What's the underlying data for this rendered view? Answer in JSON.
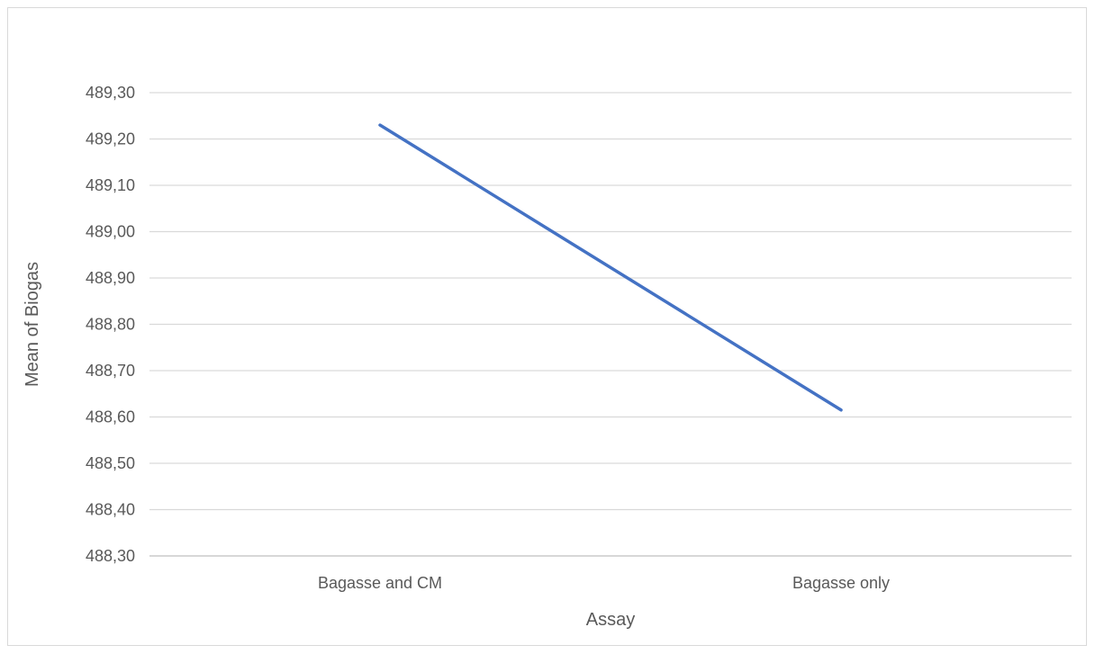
{
  "chart_data": {
    "type": "line",
    "title": "",
    "xlabel": "Assay",
    "ylabel": "Mean of Biogas",
    "categories": [
      "Bagasse and CM",
      "Bagasse only"
    ],
    "series": [
      {
        "values": [
          489.23,
          488.615
        ],
        "color": "#4472c4"
      }
    ],
    "ylim": [
      488.3,
      489.3
    ],
    "yticks": [
      488.3,
      488.4,
      488.5,
      488.6,
      488.7,
      488.8,
      488.9,
      489.0,
      489.1,
      489.2,
      489.3
    ],
    "ytick_labels": [
      "488,30",
      "488,40",
      "488,50",
      "488,60",
      "488,70",
      "488,80",
      "488,90",
      "489,00",
      "489,10",
      "489,20",
      "489,30"
    ],
    "grid": true,
    "legend": "none",
    "gridline_color": "#d9d9d9",
    "text_color": "#595959"
  }
}
